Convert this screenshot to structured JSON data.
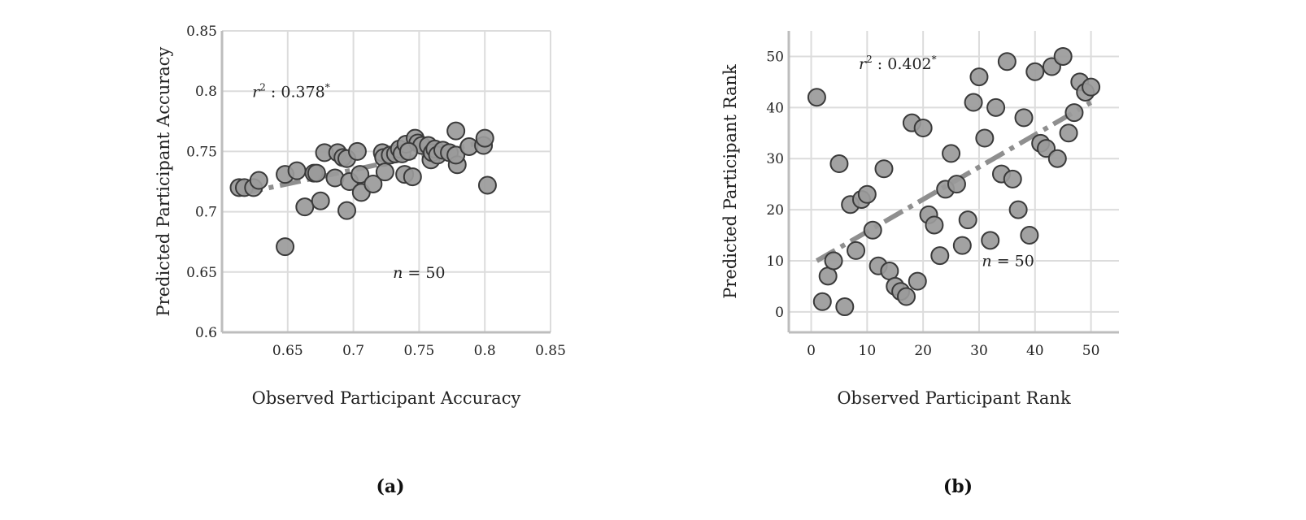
{
  "chart_data": [
    {
      "type": "scatter",
      "panel_label": "(a)",
      "xlabel": "Observed Participant Accuracy",
      "ylabel": "Predicted Participant Accuracy",
      "xlim": [
        0.6,
        0.85
      ],
      "ylim": [
        0.6,
        0.85
      ],
      "xticks": [
        0.65,
        0.7,
        0.75,
        0.8,
        0.85
      ],
      "yticks": [
        0.6,
        0.65,
        0.7,
        0.75,
        0.8,
        0.85
      ],
      "xtick_labels": [
        "0.65",
        "0.7",
        "0.75",
        "0.8",
        "0.85"
      ],
      "ytick_labels": [
        "0.6",
        "0.65",
        "0.7",
        "0.75",
        "0.8",
        "0.85"
      ],
      "grid": true,
      "annotations": {
        "r2_sym": "r",
        "r2_sup": "2",
        "r2_val": " : 0.378",
        "r2_star": "*",
        "n_sym": "n",
        "n_val": " = 50"
      },
      "trend": {
        "x": [
          0.615,
          0.8
        ],
        "y": [
          0.715,
          0.758
        ]
      },
      "points": [
        [
          0.613,
          0.72
        ],
        [
          0.617,
          0.72
        ],
        [
          0.624,
          0.72
        ],
        [
          0.628,
          0.726
        ],
        [
          0.648,
          0.731
        ],
        [
          0.648,
          0.671
        ],
        [
          0.657,
          0.734
        ],
        [
          0.663,
          0.704
        ],
        [
          0.67,
          0.732
        ],
        [
          0.672,
          0.732
        ],
        [
          0.675,
          0.709
        ],
        [
          0.678,
          0.749
        ],
        [
          0.686,
          0.728
        ],
        [
          0.688,
          0.749
        ],
        [
          0.692,
          0.745
        ],
        [
          0.695,
          0.744
        ],
        [
          0.695,
          0.701
        ],
        [
          0.697,
          0.725
        ],
        [
          0.703,
          0.75
        ],
        [
          0.705,
          0.731
        ],
        [
          0.706,
          0.716
        ],
        [
          0.715,
          0.723
        ],
        [
          0.722,
          0.749
        ],
        [
          0.723,
          0.745
        ],
        [
          0.724,
          0.733
        ],
        [
          0.728,
          0.747
        ],
        [
          0.732,
          0.748
        ],
        [
          0.735,
          0.752
        ],
        [
          0.737,
          0.748
        ],
        [
          0.739,
          0.731
        ],
        [
          0.74,
          0.756
        ],
        [
          0.745,
          0.729
        ],
        [
          0.747,
          0.761
        ],
        [
          0.749,
          0.757
        ],
        [
          0.752,
          0.755
        ],
        [
          0.757,
          0.755
        ],
        [
          0.759,
          0.743
        ],
        [
          0.76,
          0.749
        ],
        [
          0.762,
          0.752
        ],
        [
          0.764,
          0.747
        ],
        [
          0.768,
          0.751
        ],
        [
          0.773,
          0.749
        ],
        [
          0.778,
          0.767
        ],
        [
          0.779,
          0.739
        ],
        [
          0.778,
          0.747
        ],
        [
          0.788,
          0.754
        ],
        [
          0.799,
          0.755
        ],
        [
          0.8,
          0.761
        ],
        [
          0.802,
          0.722
        ],
        [
          0.742,
          0.75
        ]
      ]
    },
    {
      "type": "scatter",
      "panel_label": "(b)",
      "xlabel": "Observed Participant Rank",
      "ylabel": "Predicted Participant Rank",
      "xlim": [
        -4,
        55
      ],
      "ylim": [
        -4,
        55
      ],
      "xticks": [
        0,
        10,
        20,
        30,
        40,
        50
      ],
      "yticks": [
        0,
        10,
        20,
        30,
        40,
        50
      ],
      "xtick_labels": [
        "0",
        "10",
        "20",
        "30",
        "40",
        "50"
      ],
      "ytick_labels": [
        "0",
        "10",
        "20",
        "30",
        "40",
        "50"
      ],
      "grid": true,
      "annotations": {
        "r2_sym": "r",
        "r2_sup": "2",
        "r2_val": " : 0.402",
        "r2_star": "*",
        "n_sym": "n",
        "n_val": " = 50"
      },
      "trend": {
        "x": [
          1,
          50
        ],
        "y": [
          10,
          41
        ]
      },
      "points": [
        [
          1,
          42
        ],
        [
          2,
          2
        ],
        [
          3,
          7
        ],
        [
          4,
          10
        ],
        [
          5,
          29
        ],
        [
          6,
          1
        ],
        [
          7,
          21
        ],
        [
          8,
          12
        ],
        [
          9,
          22
        ],
        [
          10,
          23
        ],
        [
          11,
          16
        ],
        [
          12,
          9
        ],
        [
          13,
          28
        ],
        [
          14,
          8
        ],
        [
          15,
          5
        ],
        [
          16,
          4
        ],
        [
          17,
          3
        ],
        [
          18,
          37
        ],
        [
          19,
          6
        ],
        [
          20,
          36
        ],
        [
          21,
          19
        ],
        [
          22,
          17
        ],
        [
          23,
          11
        ],
        [
          24,
          24
        ],
        [
          25,
          31
        ],
        [
          26,
          25
        ],
        [
          27,
          13
        ],
        [
          28,
          18
        ],
        [
          29,
          41
        ],
        [
          30,
          46
        ],
        [
          31,
          34
        ],
        [
          32,
          14
        ],
        [
          33,
          40
        ],
        [
          34,
          27
        ],
        [
          35,
          49
        ],
        [
          36,
          26
        ],
        [
          37,
          20
        ],
        [
          38,
          38
        ],
        [
          39,
          15
        ],
        [
          40,
          47
        ],
        [
          41,
          33
        ],
        [
          42,
          32
        ],
        [
          43,
          48
        ],
        [
          44,
          30
        ],
        [
          45,
          50
        ],
        [
          46,
          35
        ],
        [
          47,
          39
        ],
        [
          48,
          45
        ],
        [
          49,
          43
        ],
        [
          50,
          44
        ]
      ]
    }
  ]
}
